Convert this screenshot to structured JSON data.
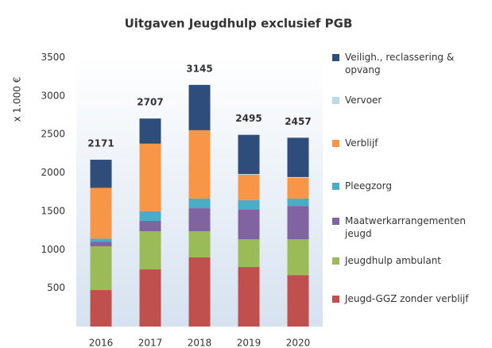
{
  "chart_data": {
    "type": "stacked-bar",
    "title": "Uitgaven Jeugdhulp exclusief PGB",
    "y_label": "x 1.000 €",
    "categories": [
      "2016",
      "2017",
      "2018",
      "2019",
      "2020"
    ],
    "series": [
      {
        "name": "Jeugd-GGZ zonder verblijf",
        "color": "#c0504d",
        "values": [
          475,
          744,
          900,
          775,
          670
        ]
      },
      {
        "name": "Jeugdhulp ambulant",
        "color": "#9bbb59",
        "values": [
          570,
          496,
          340,
          360,
          465
        ]
      },
      {
        "name": "Maatwerkarrangementen jeugd",
        "color": "#8064a2",
        "values": [
          60,
          135,
          300,
          385,
          435
        ]
      },
      {
        "name": "Pleegzorg",
        "color": "#4bacc6",
        "values": [
          40,
          125,
          125,
          125,
          95
        ]
      },
      {
        "name": "Verblijf",
        "color": "#f79646",
        "values": [
          660,
          880,
          890,
          330,
          270
        ]
      },
      {
        "name": "Vervoer",
        "color": "#b7dee8",
        "values": [
          0,
          0,
          0,
          10,
          10
        ]
      },
      {
        "name": "Veiligh., reclassering & opvang",
        "color": "#2e4d7b",
        "values": [
          366,
          327,
          590,
          510,
          512
        ]
      }
    ],
    "totals": [
      2171,
      2707,
      3145,
      2495,
      2457
    ],
    "ylim": [
      0,
      3500
    ],
    "yticks": [
      500,
      1000,
      1500,
      2000,
      2500,
      3000,
      3500
    ]
  }
}
